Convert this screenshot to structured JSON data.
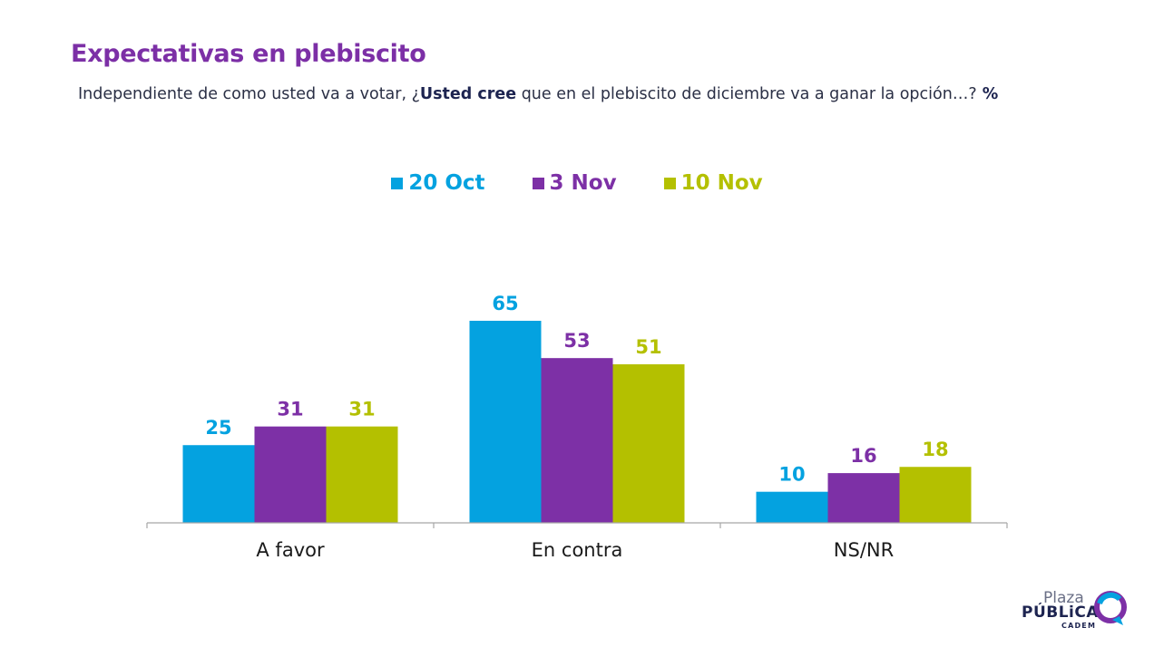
{
  "title": "Expectativas en plebiscito",
  "subtitle": {
    "prefix": "Independiente de como usted va a votar, ¿",
    "bold": "Usted cree",
    "suffix": " que en el plebiscito de diciembre va a ganar la opción…?",
    "unit": " %"
  },
  "logo": {
    "line1": "Plaza",
    "line2": "PÚBLiCA",
    "line3": "CADEM"
  },
  "colors": {
    "20 Oct": "#04a2e0",
    "3 Nov": "#7d30a6",
    "10 Nov": "#b4c000",
    "title": "#7c2fa6"
  },
  "chart_data": {
    "type": "bar",
    "categories": [
      "A favor",
      "En contra",
      "NS/NR"
    ],
    "series": [
      {
        "name": "20 Oct",
        "values": [
          25,
          65,
          10
        ]
      },
      {
        "name": "3 Nov",
        "values": [
          31,
          53,
          16
        ]
      },
      {
        "name": "10 Nov",
        "values": [
          31,
          51,
          18
        ]
      }
    ],
    "ylim": [
      0,
      65
    ],
    "legend": "top-center",
    "grid": false,
    "data_labels": true
  }
}
